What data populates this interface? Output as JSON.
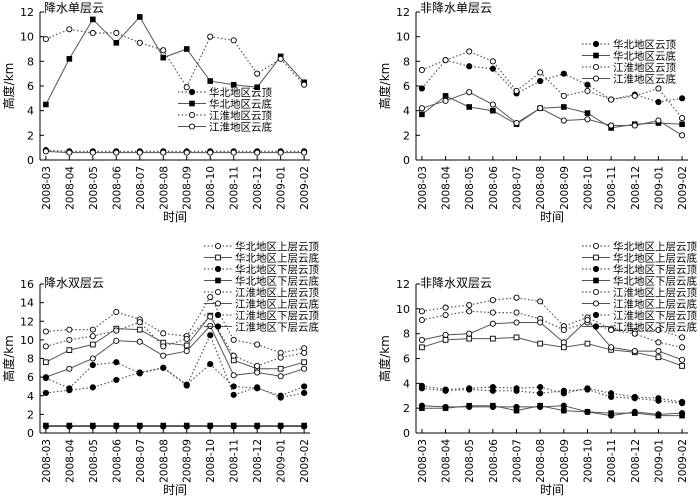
{
  "chart_data": [
    {
      "type": "line",
      "title": "降水单层云",
      "xlabel": "时间",
      "ylabel": "高度/km",
      "ylim": [
        0,
        12
      ],
      "yticks": [
        0,
        2,
        4,
        6,
        8,
        10,
        12
      ],
      "legend_position": "center-right",
      "categories": [
        "2008-03",
        "2008-04",
        "2008-05",
        "2008-06",
        "2008-07",
        "2008-08",
        "2008-09",
        "2008-10",
        "2008-11",
        "2008-12",
        "2009-01",
        "2009-02"
      ],
      "series": [
        {
          "name": "华北地区云顶",
          "style": "dotted",
          "marker": "filled-circle",
          "values": [
            0.8,
            0.7,
            0.7,
            0.7,
            0.7,
            0.7,
            0.7,
            0.7,
            0.7,
            0.7,
            0.7,
            0.7
          ]
        },
        {
          "name": "华北地区云底",
          "style": "solid",
          "marker": "filled-square",
          "values": [
            4.5,
            8.2,
            11.4,
            9.5,
            11.6,
            8.3,
            9.0,
            6.4,
            6.1,
            5.9,
            8.4,
            6.3
          ]
        },
        {
          "name": "江淮地区云顶",
          "style": "dotted",
          "marker": "open-circle",
          "values": [
            9.8,
            10.6,
            10.3,
            10.3,
            9.5,
            8.9,
            5.9,
            10.0,
            9.7,
            7.0,
            8.2,
            6.1
          ]
        },
        {
          "name": "江淮地区云底",
          "style": "solid",
          "marker": "open-circle",
          "values": [
            0.7,
            0.6,
            0.6,
            0.6,
            0.6,
            0.6,
            0.6,
            0.6,
            0.6,
            0.6,
            0.6,
            0.6
          ]
        }
      ]
    },
    {
      "type": "line",
      "title": "非降水单层云",
      "xlabel": "时间",
      "ylabel": "高度/km",
      "ylim": [
        0,
        12
      ],
      "yticks": [
        0,
        2,
        4,
        6,
        8,
        10,
        12
      ],
      "legend_position": "top-right",
      "categories": [
        "2008-03",
        "2008-04",
        "2008-05",
        "2008-06",
        "2008-07",
        "2008-08",
        "2008-09",
        "2008-10",
        "2008-11",
        "2008-12",
        "2009-01",
        "2009-02"
      ],
      "series": [
        {
          "name": "华北地区云顶",
          "style": "dotted",
          "marker": "filled-circle",
          "values": [
            5.8,
            8.1,
            7.6,
            7.4,
            5.4,
            6.4,
            7.0,
            6.1,
            4.9,
            5.3,
            4.7,
            5.0
          ]
        },
        {
          "name": "华北地区云底",
          "style": "solid",
          "marker": "filled-square",
          "values": [
            3.7,
            5.2,
            4.3,
            4.0,
            2.9,
            4.2,
            4.3,
            3.8,
            2.6,
            2.9,
            3.0,
            2.9
          ]
        },
        {
          "name": "江淮地区云顶",
          "style": "dotted",
          "marker": "open-circle",
          "values": [
            7.3,
            8.1,
            8.8,
            8.0,
            5.6,
            7.1,
            5.2,
            5.6,
            4.9,
            5.2,
            5.8,
            3.4
          ]
        },
        {
          "name": "江淮地区云底",
          "style": "solid",
          "marker": "open-circle",
          "values": [
            4.2,
            4.8,
            5.5,
            4.5,
            3.0,
            4.2,
            3.2,
            3.3,
            2.8,
            2.8,
            3.2,
            2.0
          ]
        }
      ]
    },
    {
      "type": "line",
      "title": "降水双层云",
      "xlabel": "时间",
      "ylabel": "高度/km",
      "ylim": [
        0,
        16
      ],
      "yticks": [
        0,
        2,
        4,
        6,
        8,
        10,
        12,
        14,
        16
      ],
      "legend_position": "top-right",
      "categories": [
        "2008-03",
        "2008-04",
        "2008-05",
        "2008-06",
        "2008-07",
        "2008-08",
        "2008-09",
        "2008-10",
        "2008-11",
        "2008-12",
        "2009-01",
        "2009-02"
      ],
      "series": [
        {
          "name": "华北地区上层云顶",
          "style": "dotted",
          "marker": "open-circle",
          "values": [
            10.9,
            11.1,
            11.1,
            13.0,
            12.2,
            10.7,
            10.4,
            14.6,
            10.0,
            9.5,
            8.6,
            9.1
          ]
        },
        {
          "name": "华北地区上层云底",
          "style": "solid",
          "marker": "open-square",
          "values": [
            7.6,
            8.9,
            9.5,
            11.2,
            11.1,
            9.7,
            9.4,
            12.6,
            7.8,
            6.9,
            6.9,
            7.6
          ]
        },
        {
          "name": "华北地区下层云顶",
          "style": "dotted",
          "marker": "filled-circle",
          "values": [
            4.3,
            4.6,
            4.9,
            5.7,
            6.5,
            7.0,
            5.1,
            10.5,
            4.1,
            4.9,
            3.8,
            4.3
          ]
        },
        {
          "name": "华北地区下层云底",
          "style": "solid",
          "marker": "filled-square",
          "values": [
            0.8,
            0.8,
            0.8,
            0.8,
            0.8,
            0.8,
            0.8,
            0.8,
            0.8,
            0.8,
            0.8,
            0.8
          ]
        },
        {
          "name": "江淮地区上层云顶",
          "style": "dotted",
          "marker": "open-circle",
          "values": [
            9.3,
            10.0,
            10.4,
            11.0,
            11.9,
            9.3,
            10.1,
            12.5,
            8.3,
            7.2,
            8.1,
            8.6
          ]
        },
        {
          "name": "江淮地区上层云底",
          "style": "solid",
          "marker": "open-circle",
          "values": [
            6.0,
            6.9,
            8.0,
            9.9,
            9.8,
            8.3,
            8.8,
            11.5,
            6.2,
            6.5,
            6.1,
            6.9
          ]
        },
        {
          "name": "江淮地区下层云顶",
          "style": "dotted",
          "marker": "filled-circle",
          "values": [
            5.9,
            4.8,
            7.3,
            7.6,
            6.4,
            7.0,
            5.2,
            7.4,
            5.0,
            4.8,
            4.0,
            5.0
          ]
        },
        {
          "name": "江淮地区下层云底",
          "style": "solid",
          "marker": "filled-circle",
          "values": [
            0.7,
            0.7,
            0.7,
            0.7,
            0.7,
            0.7,
            0.7,
            0.7,
            0.7,
            0.7,
            0.7,
            0.7
          ]
        }
      ]
    },
    {
      "type": "line",
      "title": "非降水双层云",
      "xlabel": "时间",
      "ylabel": "高度/km",
      "ylim": [
        0,
        12
      ],
      "yticks": [
        0,
        2,
        4,
        6,
        8,
        10,
        12
      ],
      "legend_position": "top-right",
      "categories": [
        "2008-03",
        "2008-04",
        "2008-05",
        "2008-06",
        "2008-07",
        "2008-08",
        "2008-09",
        "2008-10",
        "2008-11",
        "2008-12",
        "2009-01",
        "2009-02"
      ],
      "series": [
        {
          "name": "华北地区上层云顶",
          "style": "dotted",
          "marker": "open-circle",
          "values": [
            9.8,
            10.1,
            10.3,
            10.7,
            10.9,
            10.6,
            8.6,
            9.3,
            8.4,
            8.2,
            8.3,
            7.7
          ]
        },
        {
          "name": "华北地区上层云底",
          "style": "solid",
          "marker": "open-square",
          "values": [
            6.9,
            7.5,
            7.6,
            7.6,
            7.7,
            7.2,
            6.9,
            7.2,
            6.7,
            6.5,
            6.1,
            5.4
          ]
        },
        {
          "name": "华北地区下层云顶",
          "style": "dotted",
          "marker": "filled-circle",
          "values": [
            3.8,
            3.5,
            3.6,
            3.7,
            3.6,
            3.7,
            3.2,
            3.6,
            3.2,
            2.9,
            2.8,
            2.5
          ]
        },
        {
          "name": "华北地区下层云底",
          "style": "solid",
          "marker": "filled-square",
          "values": [
            2.0,
            2.0,
            2.2,
            2.2,
            1.8,
            2.2,
            1.8,
            1.7,
            1.6,
            1.6,
            1.4,
            1.4
          ]
        },
        {
          "name": "江淮地区上层云顶",
          "style": "dotted",
          "marker": "open-circle",
          "values": [
            9.1,
            9.5,
            9.8,
            9.7,
            9.7,
            9.2,
            8.3,
            8.9,
            8.3,
            8.0,
            7.3,
            6.9
          ]
        },
        {
          "name": "江淮地区上层云底",
          "style": "solid",
          "marker": "open-circle",
          "values": [
            7.5,
            7.9,
            8.0,
            8.8,
            8.9,
            8.9,
            7.3,
            9.1,
            6.9,
            6.6,
            6.6,
            5.9
          ]
        },
        {
          "name": "江淮地区下层云顶",
          "style": "dotted",
          "marker": "filled-circle",
          "values": [
            3.6,
            3.4,
            3.5,
            3.4,
            3.4,
            3.2,
            3.4,
            3.5,
            2.9,
            2.8,
            2.6,
            2.4
          ]
        },
        {
          "name": "江淮地区下层云底",
          "style": "solid",
          "marker": "filled-circle",
          "values": [
            2.2,
            2.1,
            2.1,
            2.1,
            2.1,
            2.1,
            2.2,
            1.7,
            1.4,
            1.7,
            1.5,
            1.6
          ]
        }
      ]
    }
  ]
}
